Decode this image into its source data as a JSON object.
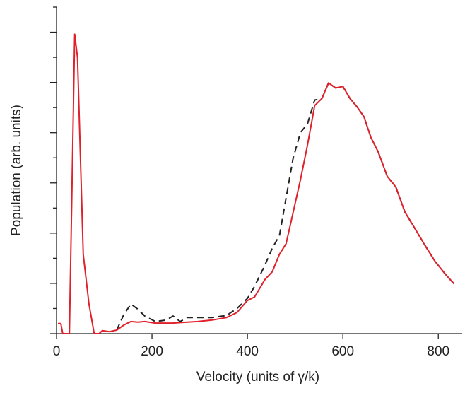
{
  "chart_data": {
    "type": "line",
    "x_label": "Velocity (units of γ/k)",
    "y_label": "Population (arb. units)",
    "x": [
      3,
      9,
      13,
      24,
      27,
      38,
      44,
      56,
      68,
      79,
      89,
      96,
      111,
      126,
      141,
      156,
      170,
      185,
      207,
      230,
      244,
      259,
      274,
      296,
      326,
      356,
      378,
      400,
      415,
      437,
      452,
      467,
      481,
      496,
      511,
      526,
      541,
      556,
      570,
      585,
      600,
      615,
      630,
      644,
      659,
      674,
      693,
      711,
      730,
      748,
      770,
      793,
      815,
      833
    ],
    "series": [
      {
        "color": "#222222",
        "dashed": true,
        "values": [
          null,
          null,
          null,
          null,
          null,
          null,
          null,
          null,
          null,
          null,
          null,
          null,
          null,
          0.07,
          0.38,
          0.59,
          0.49,
          0.35,
          0.24,
          0.27,
          0.35,
          0.24,
          0.32,
          0.32,
          0.32,
          0.36,
          0.5,
          0.7,
          0.94,
          1.37,
          1.7,
          1.95,
          2.7,
          3.5,
          4.0,
          4.18,
          4.65,
          4.68,
          4.99,
          4.89,
          4.92,
          4.68,
          4.51,
          4.32,
          3.9,
          3.62,
          3.13,
          2.92,
          2.42,
          2.14,
          1.79,
          1.44,
          1.18,
          0.99
        ]
      },
      {
        "color": "#e0202a",
        "dashed": false,
        "values": [
          0.2,
          0.2,
          0,
          0,
          0,
          5.96,
          5.49,
          1.58,
          0.59,
          0,
          0,
          0.06,
          0.04,
          0.07,
          0.17,
          0.24,
          0.23,
          0.24,
          0.21,
          0.21,
          0.21,
          0.22,
          0.23,
          0.24,
          0.27,
          0.32,
          0.42,
          0.66,
          0.73,
          1.08,
          1.23,
          1.58,
          1.79,
          2.42,
          3.06,
          3.76,
          4.54,
          4.68,
          4.99,
          4.89,
          4.92,
          4.68,
          4.51,
          4.32,
          3.9,
          3.62,
          3.13,
          2.92,
          2.42,
          2.14,
          1.79,
          1.44,
          1.18,
          0.99
        ]
      }
    ],
    "xlim": [
      0,
      850
    ],
    "xticks": [
      0,
      200,
      400,
      600,
      800
    ],
    "ylim": [
      0,
      6.5
    ],
    "yticks": [
      0,
      0.5,
      1,
      1.5,
      2,
      2.5,
      3,
      3.5,
      4,
      4.5,
      5,
      5.5,
      6,
      6.5
    ]
  }
}
